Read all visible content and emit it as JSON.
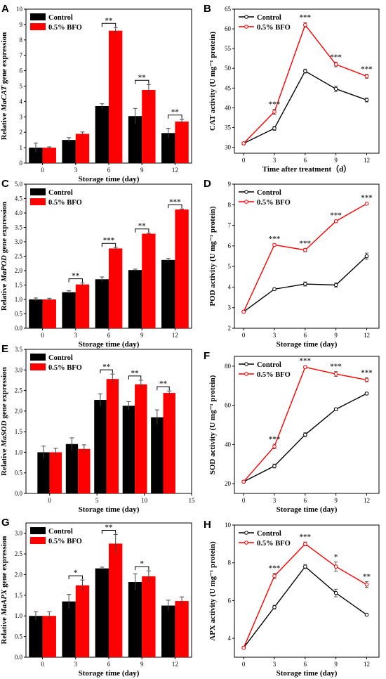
{
  "chart_data": [
    {
      "id": "A",
      "type": "bar",
      "letter": "A",
      "ylabel_pre": "Relative ",
      "ylabel_gene": "MaCAT",
      "ylabel_post": " gene expression",
      "xlabel": "Storage  time (day)",
      "x_ticks": [
        "0",
        "3",
        "6",
        "9",
        "12"
      ],
      "categories": [
        "0",
        "3",
        "6",
        "9",
        "12"
      ],
      "ylim": [
        0,
        10
      ],
      "y_ticks": [
        "0",
        "1",
        "2",
        "3",
        "4",
        "5",
        "6",
        "7",
        "8",
        "9",
        "10"
      ],
      "series": [
        {
          "name": "Control",
          "color": "#000000",
          "values": [
            1.0,
            1.5,
            3.7,
            3.05,
            1.95
          ],
          "errors": [
            0.3,
            0.15,
            0.15,
            0.5,
            0.3
          ]
        },
        {
          "name": "0.5% BFO",
          "color": "#ff0000",
          "values": [
            1.0,
            1.9,
            8.6,
            4.75,
            2.7
          ],
          "errors": [
            0.05,
            0.12,
            0.2,
            0.35,
            0.15
          ]
        }
      ],
      "significance": [
        {
          "index": 2,
          "label": "**"
        },
        {
          "index": 3,
          "label": "**"
        },
        {
          "index": 4,
          "label": "**"
        }
      ],
      "legend": "top-left"
    },
    {
      "id": "B",
      "type": "line",
      "letter": "B",
      "ylabel": "CAT activity (U mg⁻¹ protein)",
      "xlabel": "Time after treatment（d）",
      "x": [
        0,
        3,
        6,
        9,
        12
      ],
      "x_ticks": [
        "0",
        "3",
        "6",
        "9",
        "12"
      ],
      "ylim": [
        28.5,
        65
      ],
      "y_ticks": [
        30,
        35,
        40,
        45,
        50,
        55,
        60,
        65
      ],
      "series": [
        {
          "name": "Control",
          "color": "#000000",
          "values": [
            31.0,
            34.8,
            49.3,
            44.8,
            42.0
          ],
          "errors": [
            0.3,
            0.5,
            0.5,
            0.7,
            0.5
          ]
        },
        {
          "name": "0.5% BFO",
          "color": "#ff0000",
          "values": [
            31.0,
            39.0,
            61.0,
            51.0,
            48.0
          ],
          "errors": [
            0.3,
            0.6,
            0.6,
            0.6,
            0.5
          ]
        }
      ],
      "significance": [
        {
          "index": 1,
          "label": "***"
        },
        {
          "index": 2,
          "label": "***"
        },
        {
          "index": 3,
          "label": "***"
        },
        {
          "index": 4,
          "label": "***"
        }
      ],
      "legend": "top-left"
    },
    {
      "id": "C",
      "type": "bar",
      "letter": "C",
      "ylabel_pre": "Relative ",
      "ylabel_gene": "MaPOD",
      "ylabel_post": " gene expression",
      "xlabel": "Storage  time (day)",
      "x_ticks": [
        "0",
        "3",
        "6",
        "9",
        "12"
      ],
      "categories": [
        "0",
        "3",
        "6",
        "9",
        "12"
      ],
      "ylim": [
        0,
        5
      ],
      "y_ticks": [
        "0.0",
        "0.5",
        "1.0",
        "1.5",
        "2.0",
        "2.5",
        "3.0",
        "3.5",
        "4.0",
        "4.5",
        "5.0"
      ],
      "series": [
        {
          "name": "Control",
          "color": "#000000",
          "values": [
            1.0,
            1.25,
            1.7,
            2.02,
            2.37
          ],
          "errors": [
            0.05,
            0.05,
            0.08,
            0.03,
            0.05
          ]
        },
        {
          "name": "0.5% BFO",
          "color": "#ff0000",
          "values": [
            1.0,
            1.52,
            2.77,
            3.28,
            4.12
          ],
          "errors": [
            0.04,
            0.05,
            0.03,
            0.02,
            0.02
          ]
        }
      ],
      "significance": [
        {
          "index": 1,
          "label": "**"
        },
        {
          "index": 2,
          "label": "***"
        },
        {
          "index": 3,
          "label": "**"
        },
        {
          "index": 4,
          "label": "***"
        }
      ],
      "legend": "top-left"
    },
    {
      "id": "D",
      "type": "line",
      "letter": "D",
      "ylabel": "POD activity (U mg⁻¹ protein)",
      "xlabel": "Storage  time (day)",
      "x": [
        0,
        3,
        6,
        9,
        12
      ],
      "x_ticks": [
        "0",
        "3",
        "6",
        "9",
        "12"
      ],
      "ylim": [
        2,
        9
      ],
      "y_ticks": [
        2,
        3,
        4,
        5,
        6,
        7,
        8,
        9
      ],
      "series": [
        {
          "name": "Control",
          "color": "#000000",
          "values": [
            2.8,
            3.9,
            4.15,
            4.1,
            5.5
          ],
          "errors": [
            0.05,
            0.05,
            0.1,
            0.1,
            0.15
          ]
        },
        {
          "name": "0.5% BFO",
          "color": "#ff0000",
          "values": [
            2.8,
            6.05,
            5.8,
            7.2,
            8.05
          ],
          "errors": [
            0.05,
            0.05,
            0.08,
            0.05,
            0.05
          ]
        }
      ],
      "significance": [
        {
          "index": 1,
          "label": "***"
        },
        {
          "index": 2,
          "label": "***"
        },
        {
          "index": 3,
          "label": "***"
        },
        {
          "index": 4,
          "label": "***"
        }
      ],
      "legend": "top-left"
    },
    {
      "id": "E",
      "type": "bar",
      "letter": "E",
      "ylabel_pre": "Relative ",
      "ylabel_gene": "MaSOD",
      "ylabel_post": " gene expression",
      "xlabel": "Storage  time (day)",
      "x_ticks": [
        "0",
        "5",
        "10",
        "15"
      ],
      "xlim": [
        -2.5,
        15
      ],
      "categories": [
        "0",
        "3",
        "6",
        "9",
        "12"
      ],
      "x_positions": [
        0,
        3,
        6,
        9,
        12
      ],
      "ylim": [
        0,
        3.5
      ],
      "y_ticks": [
        "0.0",
        "0.5",
        "1.0",
        "1.5",
        "2.0",
        "2.5",
        "3.0",
        "3.5"
      ],
      "series": [
        {
          "name": "Control",
          "color": "#000000",
          "values": [
            1.0,
            1.2,
            2.27,
            2.13,
            1.85
          ],
          "errors": [
            0.15,
            0.15,
            0.15,
            0.1,
            0.18
          ]
        },
        {
          "name": "0.5% BFO",
          "color": "#ff0000",
          "values": [
            1.0,
            1.08,
            2.78,
            2.65,
            2.44
          ],
          "errors": [
            0.1,
            0.1,
            0.12,
            0.1,
            0.05
          ]
        }
      ],
      "significance": [
        {
          "index": 2,
          "label": "**"
        },
        {
          "index": 3,
          "label": "**"
        },
        {
          "index": 4,
          "label": "**"
        }
      ],
      "legend": "top-left"
    },
    {
      "id": "F",
      "type": "line",
      "letter": "F",
      "ylabel": "SOD activity (U mg⁻¹ protein)",
      "xlabel": "Storage  time (day)",
      "x": [
        0,
        3,
        6,
        9,
        12
      ],
      "x_ticks": [
        "0",
        "3",
        "6",
        "9",
        "12"
      ],
      "ylim": [
        15,
        85
      ],
      "y_ticks": [
        20,
        40,
        60,
        80
      ],
      "series": [
        {
          "name": "Control",
          "color": "#000000",
          "values": [
            21.0,
            29.0,
            45.0,
            58.0,
            66.0
          ],
          "errors": [
            0.5,
            1.0,
            1.0,
            0.6,
            0.6
          ]
        },
        {
          "name": "0.5% BFO",
          "color": "#ff0000",
          "values": [
            21.0,
            39.0,
            79.5,
            76.0,
            73.0
          ],
          "errors": [
            0.5,
            1.2,
            0.6,
            1.2,
            1.0
          ]
        }
      ],
      "significance": [
        {
          "index": 1,
          "label": "***"
        },
        {
          "index": 2,
          "label": "***"
        },
        {
          "index": 3,
          "label": "***"
        },
        {
          "index": 4,
          "label": "***"
        }
      ],
      "legend": "top-left"
    },
    {
      "id": "G",
      "type": "bar",
      "letter": "G",
      "ylabel_pre": "Relative ",
      "ylabel_gene": "MaAPX",
      "ylabel_post": " gene expression",
      "xlabel": "Storage  time (day)",
      "x_ticks": [
        "0",
        "3",
        "6",
        "9",
        "12"
      ],
      "categories": [
        "0",
        "3",
        "6",
        "9",
        "12"
      ],
      "ylim": [
        0,
        3.25
      ],
      "y_ticks": [
        "0.0",
        "0.5",
        "1.0",
        "1.5",
        "2.0",
        "2.5",
        "3.0"
      ],
      "series": [
        {
          "name": "Control",
          "color": "#000000",
          "values": [
            1.0,
            1.35,
            2.15,
            1.82,
            1.25
          ],
          "errors": [
            0.1,
            0.17,
            0.03,
            0.2,
            0.13
          ]
        },
        {
          "name": "0.5% BFO",
          "color": "#ff0000",
          "values": [
            1.0,
            1.74,
            2.75,
            1.96,
            1.36
          ],
          "errors": [
            0.1,
            0.13,
            0.22,
            0.13,
            0.1
          ]
        }
      ],
      "significance": [
        {
          "index": 1,
          "label": "*"
        },
        {
          "index": 2,
          "label": "**"
        },
        {
          "index": 3,
          "label": "*"
        }
      ],
      "legend": "top-left"
    },
    {
      "id": "H",
      "type": "line",
      "letter": "H",
      "ylabel": "APX activity (U mg⁻¹ protein)",
      "xlabel": "Storage  time (day)",
      "x": [
        0,
        3,
        6,
        9,
        12
      ],
      "x_ticks": [
        "0",
        "3",
        "6",
        "9",
        "12"
      ],
      "ylim": [
        3,
        10
      ],
      "y_ticks": [
        4,
        6,
        8,
        10
      ],
      "series": [
        {
          "name": "Control",
          "color": "#000000",
          "values": [
            3.5,
            5.65,
            7.8,
            6.4,
            5.25
          ],
          "errors": [
            0.05,
            0.1,
            0.1,
            0.2,
            0.05
          ]
        },
        {
          "name": "0.5% BFO",
          "color": "#ff0000",
          "values": [
            3.5,
            7.3,
            9.0,
            7.8,
            6.85
          ],
          "errors": [
            0.05,
            0.15,
            0.1,
            0.25,
            0.15
          ]
        }
      ],
      "significance": [
        {
          "index": 1,
          "label": "***"
        },
        {
          "index": 2,
          "label": "***"
        },
        {
          "index": 3,
          "label": "*"
        },
        {
          "index": 4,
          "label": "**"
        }
      ],
      "legend": "top-left"
    }
  ]
}
